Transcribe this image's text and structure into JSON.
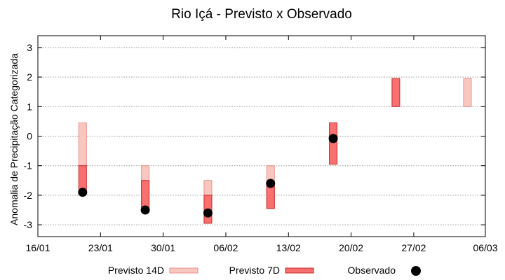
{
  "chart_data": {
    "type": "range-bar-with-points",
    "title": "Rio Içá - Previsto x Observado",
    "ylabel": "Anomalia de Precipitação Categorizada",
    "xlabel": "",
    "xlim": [
      "16/01",
      "06/03"
    ],
    "ylim": [
      -3.4,
      3.4
    ],
    "x_ticks": [
      "16/01",
      "23/01",
      "30/01",
      "06/02",
      "13/02",
      "20/02",
      "27/02",
      "06/03"
    ],
    "y_ticks": [
      "-3",
      "-2",
      "-1",
      "0",
      "1",
      "2",
      "3"
    ],
    "grid": "horizontal dotted",
    "legend_position": "bottom",
    "series": [
      {
        "name": "Previsto 14D",
        "kind": "range",
        "fill": "#f8c8c0",
        "stroke": "#e8908a",
        "data": [
          {
            "x": "21/01",
            "low": -1.0,
            "high": 0.45
          },
          {
            "x": "28/01",
            "low": -2.5,
            "high": -1.0
          },
          {
            "x": "04/02",
            "low": -2.95,
            "high": -1.5
          },
          {
            "x": "11/02",
            "low": -2.4,
            "high": -1.0
          },
          {
            "x": "04/03",
            "low": 1.0,
            "high": 1.95
          }
        ]
      },
      {
        "name": "Previsto 7D",
        "kind": "range",
        "fill": "#f87070",
        "stroke": "#c82828",
        "data": [
          {
            "x": "21/01",
            "low": -1.95,
            "high": -1.0
          },
          {
            "x": "28/01",
            "low": -2.5,
            "high": -1.5
          },
          {
            "x": "04/02",
            "low": -2.95,
            "high": -2.0
          },
          {
            "x": "11/02",
            "low": -2.45,
            "high": -1.6
          },
          {
            "x": "18/02",
            "low": -0.95,
            "high": 0.45
          },
          {
            "x": "25/02",
            "low": 1.0,
            "high": 1.95
          }
        ]
      },
      {
        "name": "Observado",
        "kind": "point",
        "color": "#000000",
        "data": [
          {
            "x": "21/01",
            "y": -1.9
          },
          {
            "x": "28/01",
            "y": -2.5
          },
          {
            "x": "04/02",
            "y": -2.6
          },
          {
            "x": "11/02",
            "y": -1.6
          },
          {
            "x": "18/02",
            "y": -0.08
          }
        ]
      }
    ]
  }
}
